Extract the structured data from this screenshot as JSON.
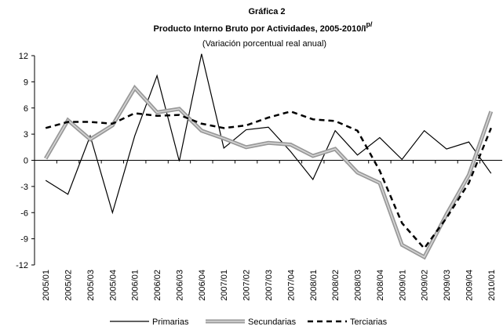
{
  "chart_data": {
    "type": "line",
    "title": "Gráfica 2",
    "subtitle": "Producto Interno Bruto por Actividades, 2005-2010/I",
    "subtitle_superscript": "p/",
    "note": "(Variación porcentual real anual)",
    "categories": [
      "2005/01",
      "2005/02",
      "2005/03",
      "2005/04",
      "2006/01",
      "2006/02",
      "2006/03",
      "2006/04",
      "2007/01",
      "2007/02",
      "2007/03",
      "2007/04",
      "2008/01",
      "2008/02",
      "2008/03",
      "2008/04",
      "2009/01",
      "2009/02",
      "2009/03",
      "2009/04",
      "2010/01"
    ],
    "series": [
      {
        "name": "Primarias",
        "color": "#000000",
        "style": "thin",
        "values": [
          -2.3,
          -3.9,
          2.8,
          -6.0,
          2.8,
          9.7,
          -0.1,
          12.2,
          1.4,
          3.5,
          3.8,
          1.0,
          -2.2,
          3.4,
          0.6,
          2.6,
          0.1,
          3.4,
          1.3,
          2.1,
          -1.5
        ]
      },
      {
        "name": "Secundarias",
        "color": "#999999",
        "style": "double",
        "values": [
          0.2,
          4.6,
          2.4,
          4.0,
          8.3,
          5.5,
          5.9,
          3.4,
          2.5,
          1.5,
          2.0,
          1.8,
          0.5,
          1.3,
          -1.4,
          -2.6,
          -9.7,
          -11.1,
          -6.2,
          -1.7,
          5.6
        ]
      },
      {
        "name": "Terciarias",
        "color": "#000000",
        "style": "dashed",
        "values": [
          3.7,
          4.4,
          4.4,
          4.2,
          5.4,
          5.1,
          5.2,
          4.2,
          3.7,
          4.0,
          4.9,
          5.6,
          4.7,
          4.5,
          3.4,
          -1.2,
          -7.2,
          -10.1,
          -6.6,
          -2.6,
          3.7
        ]
      }
    ],
    "ylim": [
      -12,
      12
    ],
    "yticks": [
      -12,
      -9,
      -6,
      -3,
      0,
      3,
      6,
      9,
      12
    ],
    "grid": false
  }
}
